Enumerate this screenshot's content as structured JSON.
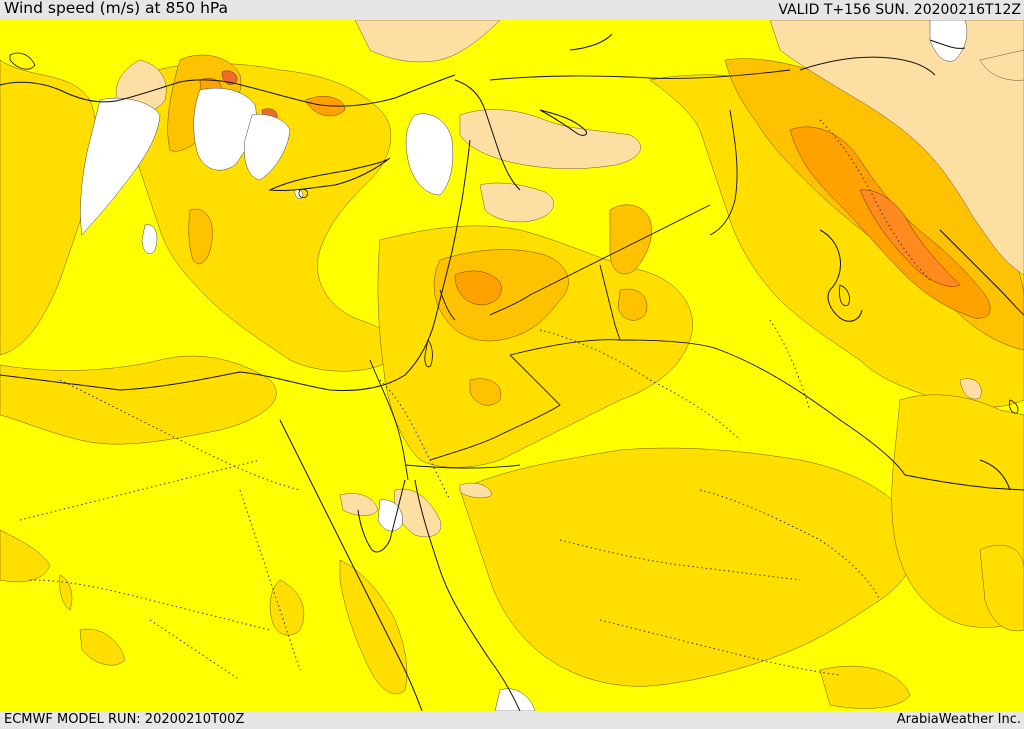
{
  "header": {
    "title": "Wind speed (m/s) at 850 hPa",
    "valid": "VALID T+156 SUN. 20200216T12Z"
  },
  "footer": {
    "model_run": "ECMWF MODEL RUN: 20200210T00Z",
    "credit": "ArabiaWeather Inc."
  },
  "palette": {
    "calm_white": "#ffffff",
    "pale_tan": "#fddfa4",
    "yellow": "#ffff00",
    "gold": "#ffde00",
    "orange_light": "#ffc200",
    "orange": "#ffa200",
    "orange_dark": "#ff8a1e",
    "red_orange": "#ee6c2c"
  }
}
